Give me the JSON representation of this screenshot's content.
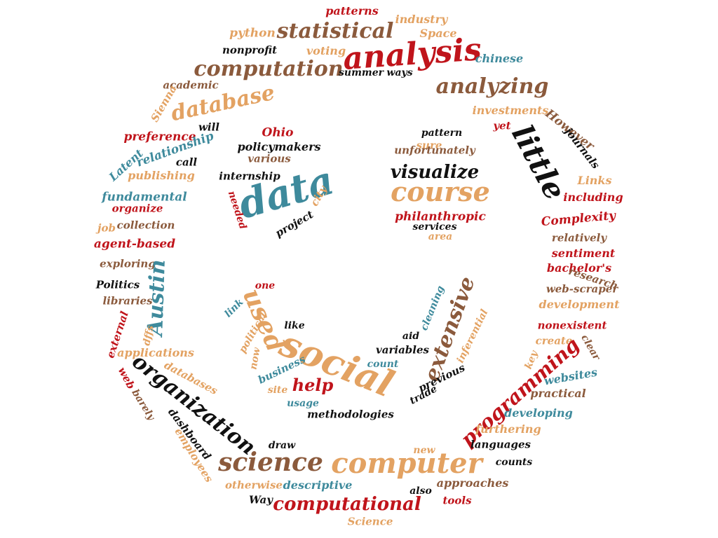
{
  "words": [
    {
      "text": "patterns",
      "color": "red"
    },
    {
      "text": "industry",
      "color": "tan"
    },
    {
      "text": "python",
      "color": "tan"
    },
    {
      "text": "statistical",
      "color": "brown"
    },
    {
      "text": "Space",
      "color": "tan"
    },
    {
      "text": "nonprofit",
      "color": "black"
    },
    {
      "text": "voting",
      "color": "tan"
    },
    {
      "text": "analysis",
      "color": "red"
    },
    {
      "text": "chinese",
      "color": "teal"
    },
    {
      "text": "computation",
      "color": "brown"
    },
    {
      "text": "summer",
      "color": "black"
    },
    {
      "text": "ways",
      "color": "black"
    },
    {
      "text": "analyzing",
      "color": "brown"
    },
    {
      "text": "academic",
      "color": "brown"
    },
    {
      "text": "database",
      "color": "tan"
    },
    {
      "text": "Sienna",
      "color": "tan"
    },
    {
      "text": "investments",
      "color": "tan"
    },
    {
      "text": "However",
      "color": "brown"
    },
    {
      "text": "yet",
      "color": "red"
    },
    {
      "text": "will",
      "color": "black"
    },
    {
      "text": "Ohio",
      "color": "red"
    },
    {
      "text": "pattern",
      "color": "black"
    },
    {
      "text": "journals",
      "color": "black"
    },
    {
      "text": "preference",
      "color": "red"
    },
    {
      "text": "policymakers",
      "color": "black"
    },
    {
      "text": "sure",
      "color": "tan"
    },
    {
      "text": "little",
      "color": "black"
    },
    {
      "text": "relationship",
      "color": "teal"
    },
    {
      "text": "various",
      "color": "brown"
    },
    {
      "text": "unfortunately",
      "color": "brown"
    },
    {
      "text": "Latent",
      "color": "teal"
    },
    {
      "text": "call",
      "color": "black"
    },
    {
      "text": "internship",
      "color": "black"
    },
    {
      "text": "visualize",
      "color": "black"
    },
    {
      "text": "Links",
      "color": "tan"
    },
    {
      "text": "publishing",
      "color": "tan"
    },
    {
      "text": "data",
      "color": "teal"
    },
    {
      "text": "course",
      "color": "tan"
    },
    {
      "text": "fundamental",
      "color": "teal"
    },
    {
      "text": "including",
      "color": "red"
    },
    {
      "text": "city",
      "color": "tan"
    },
    {
      "text": "needed",
      "color": "red"
    },
    {
      "text": "organize",
      "color": "red"
    },
    {
      "text": "philanthropic",
      "color": "red"
    },
    {
      "text": "Complexity",
      "color": "red"
    },
    {
      "text": "job",
      "color": "tan"
    },
    {
      "text": "collection",
      "color": "brown"
    },
    {
      "text": "project",
      "color": "black"
    },
    {
      "text": "services",
      "color": "black"
    },
    {
      "text": "area",
      "color": "tan"
    },
    {
      "text": "relatively",
      "color": "brown"
    },
    {
      "text": "agent-based",
      "color": "red"
    },
    {
      "text": "sentiment",
      "color": "red"
    },
    {
      "text": "exploring",
      "color": "brown"
    },
    {
      "text": "bachelor's",
      "color": "red"
    },
    {
      "text": "Austin",
      "color": "teal"
    },
    {
      "text": "research",
      "color": "brown"
    },
    {
      "text": "Politics",
      "color": "black"
    },
    {
      "text": "one",
      "color": "red"
    },
    {
      "text": "web-scraper",
      "color": "brown"
    },
    {
      "text": "libraries",
      "color": "brown"
    },
    {
      "text": "used",
      "color": "tan"
    },
    {
      "text": "link",
      "color": "teal"
    },
    {
      "text": "cleaning",
      "color": "teal"
    },
    {
      "text": "extensive",
      "color": "brown"
    },
    {
      "text": "development",
      "color": "tan"
    },
    {
      "text": "political",
      "color": "tan"
    },
    {
      "text": "like",
      "color": "black"
    },
    {
      "text": "inferential",
      "color": "tan"
    },
    {
      "text": "nonexistent",
      "color": "red"
    },
    {
      "text": "external",
      "color": "red"
    },
    {
      "text": "aid",
      "color": "black"
    },
    {
      "text": "dffs",
      "color": "tan"
    },
    {
      "text": "social",
      "color": "tan"
    },
    {
      "text": "create",
      "color": "tan"
    },
    {
      "text": "clear",
      "color": "brown"
    },
    {
      "text": "applications",
      "color": "tan"
    },
    {
      "text": "variables",
      "color": "black"
    },
    {
      "text": "now",
      "color": "tan"
    },
    {
      "text": "key",
      "color": "tan"
    },
    {
      "text": "programming",
      "color": "red"
    },
    {
      "text": "business",
      "color": "teal"
    },
    {
      "text": "count",
      "color": "teal"
    },
    {
      "text": "organization",
      "color": "black"
    },
    {
      "text": "databases",
      "color": "tan"
    },
    {
      "text": "web",
      "color": "red"
    },
    {
      "text": "help",
      "color": "red"
    },
    {
      "text": "websites",
      "color": "teal"
    },
    {
      "text": "site",
      "color": "tan"
    },
    {
      "text": "previous",
      "color": "black"
    },
    {
      "text": "practical",
      "color": "brown"
    },
    {
      "text": "barely",
      "color": "brown"
    },
    {
      "text": "usage",
      "color": "teal"
    },
    {
      "text": "trade",
      "color": "black"
    },
    {
      "text": "methodologies",
      "color": "black"
    },
    {
      "text": "developing",
      "color": "teal"
    },
    {
      "text": "dashboard",
      "color": "black"
    },
    {
      "text": "furthering",
      "color": "tan"
    },
    {
      "text": "employees",
      "color": "tan"
    },
    {
      "text": "languages",
      "color": "black"
    },
    {
      "text": "draw",
      "color": "black"
    },
    {
      "text": "new",
      "color": "tan"
    },
    {
      "text": "science",
      "color": "brown"
    },
    {
      "text": "computer",
      "color": "tan"
    },
    {
      "text": "counts",
      "color": "black"
    },
    {
      "text": "otherwise",
      "color": "tan"
    },
    {
      "text": "descriptive",
      "color": "teal"
    },
    {
      "text": "approaches",
      "color": "brown"
    },
    {
      "text": "also",
      "color": "black"
    },
    {
      "text": "Way",
      "color": "black"
    },
    {
      "text": "computational",
      "color": "red"
    },
    {
      "text": "tools",
      "color": "red"
    },
    {
      "text": "Science",
      "color": "tan"
    }
  ]
}
